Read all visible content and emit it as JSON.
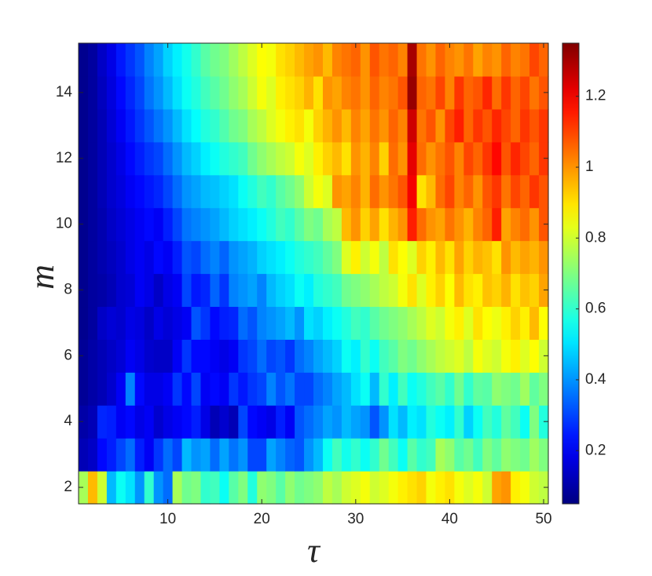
{
  "chart_data": {
    "type": "heatmap",
    "title": "",
    "xlabel": "τ",
    "ylabel": "m",
    "x": {
      "min": 1,
      "max": 50,
      "ticks": [
        10,
        20,
        30,
        40,
        50
      ]
    },
    "y": {
      "min": 2,
      "max": 15,
      "ticks": [
        2,
        4,
        6,
        8,
        10,
        12,
        14
      ]
    },
    "colorbar": {
      "min": 0.05,
      "max": 1.35,
      "ticks": [
        0.2,
        0.4,
        0.6,
        0.8,
        1,
        1.2
      ],
      "tick_labels": [
        "0.2",
        "0.4",
        "0.6",
        "0.8",
        "1",
        "1.2"
      ],
      "colormap": "jet"
    },
    "grid": false,
    "rows": [
      {
        "m": 2,
        "values": [
          0.75,
          0.95,
          0.8,
          0.45,
          0.55,
          0.5,
          0.4,
          0.6,
          0.4,
          0.35,
          0.75,
          0.68,
          0.7,
          0.6,
          0.62,
          0.55,
          0.65,
          0.7,
          0.58,
          0.72,
          0.7,
          0.65,
          0.72,
          0.68,
          0.7,
          0.72,
          0.78,
          0.75,
          0.8,
          0.82,
          0.85,
          0.8,
          0.82,
          0.85,
          0.88,
          0.9,
          0.92,
          0.85,
          0.88,
          0.9,
          0.85,
          0.82,
          0.85,
          0.8,
          0.98,
          1.0,
          0.88,
          0.85,
          0.8,
          0.78
        ]
      },
      {
        "m": 3,
        "values": [
          0.12,
          0.14,
          0.22,
          0.25,
          0.3,
          0.35,
          0.25,
          0.2,
          0.28,
          0.35,
          0.3,
          0.45,
          0.4,
          0.42,
          0.35,
          0.42,
          0.36,
          0.4,
          0.3,
          0.3,
          0.42,
          0.38,
          0.34,
          0.32,
          0.4,
          0.45,
          0.55,
          0.62,
          0.56,
          0.6,
          0.55,
          0.6,
          0.68,
          0.62,
          0.55,
          0.65,
          0.6,
          0.62,
          0.75,
          0.72,
          0.65,
          0.68,
          0.62,
          0.7,
          0.66,
          0.72,
          0.7,
          0.68,
          0.74,
          0.7
        ]
      },
      {
        "m": 4,
        "values": [
          0.1,
          0.12,
          0.26,
          0.25,
          0.2,
          0.22,
          0.18,
          0.2,
          0.15,
          0.18,
          0.2,
          0.22,
          0.25,
          0.18,
          0.12,
          0.15,
          0.12,
          0.3,
          0.22,
          0.2,
          0.18,
          0.25,
          0.2,
          0.32,
          0.35,
          0.38,
          0.42,
          0.4,
          0.45,
          0.42,
          0.4,
          0.32,
          0.4,
          0.5,
          0.45,
          0.52,
          0.5,
          0.58,
          0.55,
          0.52,
          0.6,
          0.48,
          0.55,
          0.62,
          0.58,
          0.66,
          0.62,
          0.55,
          0.7,
          0.58
        ]
      },
      {
        "m": 5,
        "values": [
          0.08,
          0.1,
          0.12,
          0.15,
          0.2,
          0.38,
          0.22,
          0.18,
          0.18,
          0.2,
          0.28,
          0.22,
          0.3,
          0.2,
          0.22,
          0.2,
          0.28,
          0.24,
          0.28,
          0.3,
          0.38,
          0.32,
          0.36,
          0.3,
          0.3,
          0.35,
          0.38,
          0.42,
          0.45,
          0.5,
          0.55,
          0.45,
          0.6,
          0.52,
          0.62,
          0.55,
          0.58,
          0.62,
          0.65,
          0.6,
          0.68,
          0.6,
          0.66,
          0.65,
          0.72,
          0.7,
          0.68,
          0.74,
          0.66,
          0.7
        ]
      },
      {
        "m": 6,
        "values": [
          0.08,
          0.1,
          0.12,
          0.14,
          0.16,
          0.2,
          0.18,
          0.15,
          0.14,
          0.14,
          0.2,
          0.28,
          0.22,
          0.22,
          0.2,
          0.18,
          0.2,
          0.28,
          0.3,
          0.35,
          0.3,
          0.32,
          0.28,
          0.35,
          0.38,
          0.42,
          0.45,
          0.48,
          0.55,
          0.52,
          0.6,
          0.55,
          0.62,
          0.65,
          0.7,
          0.68,
          0.72,
          0.75,
          0.78,
          0.8,
          0.82,
          0.78,
          0.85,
          0.82,
          0.8,
          0.85,
          0.88,
          0.82,
          0.86,
          0.8
        ]
      },
      {
        "m": 7,
        "values": [
          0.07,
          0.09,
          0.14,
          0.16,
          0.15,
          0.18,
          0.17,
          0.14,
          0.18,
          0.16,
          0.18,
          0.2,
          0.32,
          0.28,
          0.22,
          0.25,
          0.26,
          0.35,
          0.32,
          0.38,
          0.4,
          0.42,
          0.45,
          0.4,
          0.5,
          0.48,
          0.52,
          0.55,
          0.58,
          0.62,
          0.6,
          0.65,
          0.68,
          0.7,
          0.72,
          0.75,
          0.78,
          0.82,
          0.8,
          0.85,
          0.88,
          0.82,
          0.9,
          0.86,
          0.84,
          0.88,
          0.92,
          0.88,
          0.95,
          0.86
        ]
      },
      {
        "m": 8,
        "values": [
          0.07,
          0.09,
          0.1,
          0.12,
          0.15,
          0.16,
          0.2,
          0.18,
          0.14,
          0.18,
          0.2,
          0.3,
          0.24,
          0.26,
          0.34,
          0.28,
          0.38,
          0.4,
          0.42,
          0.38,
          0.45,
          0.48,
          0.5,
          0.55,
          0.52,
          0.58,
          0.6,
          0.62,
          0.68,
          0.7,
          0.72,
          0.75,
          0.78,
          0.8,
          0.85,
          0.9,
          0.82,
          0.88,
          0.92,
          0.86,
          0.95,
          0.9,
          0.88,
          0.94,
          0.92,
          0.96,
          0.9,
          0.94,
          0.92,
          0.98
        ]
      },
      {
        "m": 9,
        "values": [
          0.07,
          0.09,
          0.11,
          0.13,
          0.15,
          0.18,
          0.2,
          0.18,
          0.22,
          0.2,
          0.25,
          0.32,
          0.3,
          0.35,
          0.38,
          0.34,
          0.4,
          0.42,
          0.44,
          0.48,
          0.5,
          0.52,
          0.55,
          0.58,
          0.6,
          0.62,
          0.66,
          0.7,
          0.82,
          0.88,
          0.8,
          0.85,
          0.78,
          0.9,
          0.86,
          0.82,
          0.92,
          0.88,
          0.95,
          0.9,
          0.98,
          0.92,
          0.96,
          0.94,
          0.9,
          1.0,
          0.95,
          0.98,
          0.96,
          1.0
        ]
      },
      {
        "m": 10,
        "values": [
          0.07,
          0.09,
          0.11,
          0.14,
          0.16,
          0.18,
          0.2,
          0.22,
          0.2,
          0.25,
          0.3,
          0.36,
          0.38,
          0.4,
          0.42,
          0.45,
          0.48,
          0.5,
          0.52,
          0.55,
          0.58,
          0.62,
          0.6,
          0.65,
          0.7,
          0.68,
          0.75,
          0.78,
          0.95,
          1.0,
          0.92,
          0.98,
          0.9,
          0.96,
          1.0,
          1.15,
          1.05,
          1.0,
          0.98,
          1.04,
          1.0,
          0.96,
          1.02,
          1.06,
          1.15,
          0.98,
          1.02,
          1.05,
          1.0,
          1.08
        ]
      },
      {
        "m": 11,
        "values": [
          0.07,
          0.09,
          0.12,
          0.15,
          0.17,
          0.2,
          0.22,
          0.24,
          0.26,
          0.3,
          0.35,
          0.4,
          0.42,
          0.45,
          0.46,
          0.48,
          0.5,
          0.55,
          0.58,
          0.62,
          0.6,
          0.65,
          0.68,
          0.72,
          0.8,
          0.85,
          0.82,
          1.0,
          0.98,
          1.02,
          0.96,
          1.05,
          1.0,
          1.04,
          1.08,
          1.2,
          0.9,
          0.95,
          1.05,
          1.1,
          1.02,
          1.06,
          1.0,
          1.08,
          1.12,
          1.04,
          1.1,
          1.06,
          1.12,
          1.08
        ]
      },
      {
        "m": 12,
        "values": [
          0.07,
          0.09,
          0.12,
          0.15,
          0.18,
          0.22,
          0.25,
          0.28,
          0.3,
          0.35,
          0.4,
          0.45,
          0.48,
          0.52,
          0.55,
          0.58,
          0.6,
          0.62,
          0.68,
          0.72,
          0.75,
          0.78,
          0.8,
          0.85,
          0.82,
          0.88,
          0.92,
          0.95,
          0.9,
          1.0,
          0.96,
          1.02,
          0.92,
          1.05,
          1.0,
          1.22,
          1.05,
          1.0,
          1.04,
          1.08,
          1.02,
          1.1,
          1.06,
          1.12,
          1.18,
          1.08,
          1.14,
          1.1,
          1.06,
          1.12
        ]
      },
      {
        "m": 13,
        "values": [
          0.07,
          0.09,
          0.12,
          0.16,
          0.2,
          0.24,
          0.28,
          0.32,
          0.36,
          0.4,
          0.45,
          0.5,
          0.54,
          0.58,
          0.6,
          0.64,
          0.68,
          0.7,
          0.75,
          0.78,
          0.82,
          0.85,
          0.88,
          0.9,
          0.85,
          0.92,
          0.96,
          1.0,
          0.95,
          1.02,
          0.98,
          1.04,
          1.0,
          1.06,
          1.02,
          1.25,
          1.04,
          1.08,
          1.0,
          1.1,
          1.15,
          1.06,
          1.12,
          1.08,
          1.14,
          1.1,
          1.06,
          1.12,
          1.08,
          1.12
        ]
      },
      {
        "m": 14,
        "values": [
          0.07,
          0.09,
          0.13,
          0.17,
          0.22,
          0.26,
          0.3,
          0.36,
          0.4,
          0.45,
          0.5,
          0.55,
          0.58,
          0.62,
          0.65,
          0.68,
          0.72,
          0.75,
          0.8,
          0.85,
          0.82,
          0.88,
          0.9,
          0.92,
          0.96,
          0.9,
          1.0,
          0.98,
          1.02,
          1.04,
          1.0,
          1.06,
          1.02,
          1.04,
          1.08,
          1.32,
          1.06,
          1.04,
          1.1,
          1.02,
          1.12,
          1.06,
          1.08,
          1.14,
          1.05,
          1.12,
          1.06,
          1.1,
          1.04,
          1.08
        ]
      },
      {
        "m": 15,
        "values": [
          0.07,
          0.09,
          0.14,
          0.18,
          0.24,
          0.28,
          0.32,
          0.38,
          0.42,
          0.48,
          0.52,
          0.56,
          0.6,
          0.65,
          0.68,
          0.7,
          0.74,
          0.78,
          0.82,
          0.86,
          0.85,
          0.9,
          0.92,
          0.95,
          0.98,
          1.0,
          0.95,
          1.02,
          1.04,
          1.06,
          1.0,
          1.08,
          1.04,
          1.06,
          1.02,
          1.3,
          1.04,
          1.0,
          1.06,
          1.02,
          1.0,
          1.04,
          0.98,
          1.02,
          1.0,
          1.06,
          1.02,
          1.04,
          1.1,
          1.06
        ]
      }
    ]
  }
}
